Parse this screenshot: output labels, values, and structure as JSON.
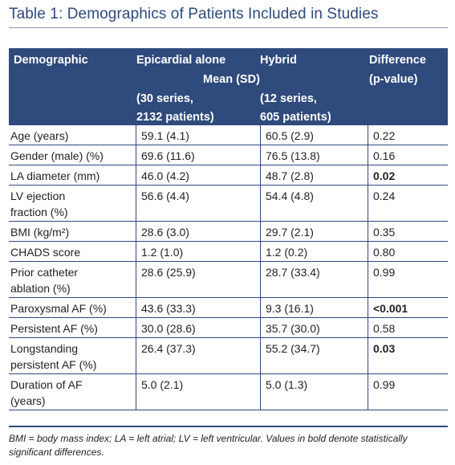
{
  "title": "Table 1: Demographics of Patients Included in Studies",
  "header": {
    "demographic": "Demographic",
    "epicardial": "Epicardial alone",
    "hybrid": "Hybrid",
    "mean_sd": "Mean (SD)",
    "difference": "Difference",
    "pvalue": "(p-value)",
    "epi_series": "(30 series,",
    "epi_patients": "2132 patients)",
    "hyb_series": "(12 series,",
    "hyb_patients": "605 patients)"
  },
  "rows": [
    {
      "demographic": [
        "Age (years)"
      ],
      "epicardial": "59.1 (4.1)",
      "hybrid": "60.5 (2.9)",
      "difference": "0.22",
      "bold": false
    },
    {
      "demographic": [
        "Gender (male) (%)"
      ],
      "epicardial": "69.6 (11.6)",
      "hybrid": "76.5 (13.8)",
      "difference": "0.16",
      "bold": false
    },
    {
      "demographic": [
        "LA diameter (mm)"
      ],
      "epicardial": "46.0 (4.2)",
      "hybrid": "48.7 (2.8)",
      "difference": "0.02",
      "bold": true
    },
    {
      "demographic": [
        "LV ejection",
        "fraction (%)"
      ],
      "epicardial": "56.6 (4.4)",
      "hybrid": "54.4 (4.8)",
      "difference": "0.24",
      "bold": false
    },
    {
      "demographic": [
        "BMI (kg/m²)"
      ],
      "epicardial": "28.6 (3.0)",
      "hybrid": "29.7 (2.1)",
      "difference": "0.35",
      "bold": false
    },
    {
      "demographic": [
        "CHADS score"
      ],
      "epicardial": "1.2 (1.0)",
      "hybrid": "1.2 (0.2)",
      "difference": "0.80",
      "bold": false
    },
    {
      "demographic": [
        "Prior catheter",
        "ablation (%)"
      ],
      "epicardial": "28.6 (25.9)",
      "hybrid": "28.7 (33.4)",
      "difference": "0.99",
      "bold": false
    },
    {
      "demographic": [
        "Paroxysmal AF (%)"
      ],
      "epicardial": "43.6 (33.3)",
      "hybrid": "9.3 (16.1)",
      "difference": "<0.001",
      "bold": true
    },
    {
      "demographic": [
        "Persistent AF (%)"
      ],
      "epicardial": "30.0 (28.6)",
      "hybrid": "35.7 (30.0)",
      "difference": "0.58",
      "bold": false
    },
    {
      "demographic": [
        "Longstanding",
        "persistent AF (%)"
      ],
      "epicardial": "26.4 (37.3)",
      "hybrid": "55.2 (34.7)",
      "difference": "0.03",
      "bold": true
    },
    {
      "demographic": [
        "Duration of AF",
        "(years)"
      ],
      "epicardial": "5.0 (2.1)",
      "hybrid": "5.0 (1.3)",
      "difference": "0.99",
      "bold": false
    }
  ],
  "footnote": {
    "line1": "BMI = body mass index; LA = left atrial; LV = left ventricular. Values in bold denote statistically",
    "line2": "significant differences."
  }
}
